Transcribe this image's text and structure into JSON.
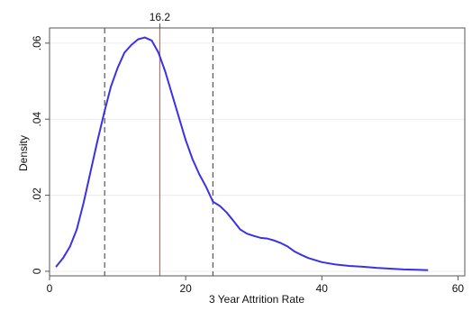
{
  "chart_data": {
    "type": "line",
    "title": "",
    "xlabel": "3 Year Attrition Rate",
    "ylabel": "Density",
    "xlim": [
      0,
      61
    ],
    "ylim": [
      -0.0012,
      0.064
    ],
    "x_ticks": [
      {
        "value": 0,
        "label": "0"
      },
      {
        "value": 20,
        "label": "20"
      },
      {
        "value": 40,
        "label": "40"
      },
      {
        "value": 60,
        "label": "60"
      }
    ],
    "y_ticks": [
      {
        "value": 0,
        "label": "0"
      },
      {
        "value": 0.02,
        "label": ".02"
      },
      {
        "value": 0.04,
        "label": ".04"
      },
      {
        "value": 0.06,
        "label": ".06"
      }
    ],
    "grid": true,
    "series": [
      {
        "color": "#3b32e6",
        "x": [
          1,
          2,
          3,
          4,
          5,
          6,
          7,
          8,
          9,
          10,
          11,
          12,
          13,
          14,
          15,
          16,
          17,
          18,
          19,
          20,
          21,
          22,
          23,
          24,
          25,
          26,
          27,
          28,
          29,
          30,
          31,
          32,
          33,
          34,
          35,
          36,
          37,
          38,
          40,
          42,
          44,
          46,
          48,
          50,
          52,
          54,
          55.5
        ],
        "y": [
          0.0013,
          0.0035,
          0.0065,
          0.011,
          0.018,
          0.026,
          0.034,
          0.0415,
          0.0485,
          0.0535,
          0.0575,
          0.0595,
          0.061,
          0.0615,
          0.0607,
          0.0575,
          0.0525,
          0.0465,
          0.0405,
          0.0345,
          0.0295,
          0.0255,
          0.0222,
          0.0183,
          0.0172,
          0.0155,
          0.0133,
          0.011,
          0.0099,
          0.0093,
          0.0088,
          0.0086,
          0.0081,
          0.0074,
          0.0065,
          0.0052,
          0.0043,
          0.0035,
          0.0024,
          0.0018,
          0.0014,
          0.0012,
          0.0009,
          0.0007,
          0.0005,
          0.0004,
          0.0003
        ]
      }
    ],
    "reference_lines": [
      {
        "x": 8.1,
        "style": "dashed",
        "color": "#555555",
        "label": ""
      },
      {
        "x": 16.2,
        "style": "solid",
        "color": "#e0596a",
        "label": "16.2"
      },
      {
        "x": 24.0,
        "style": "dashed",
        "color": "#555555",
        "label": ""
      }
    ]
  }
}
